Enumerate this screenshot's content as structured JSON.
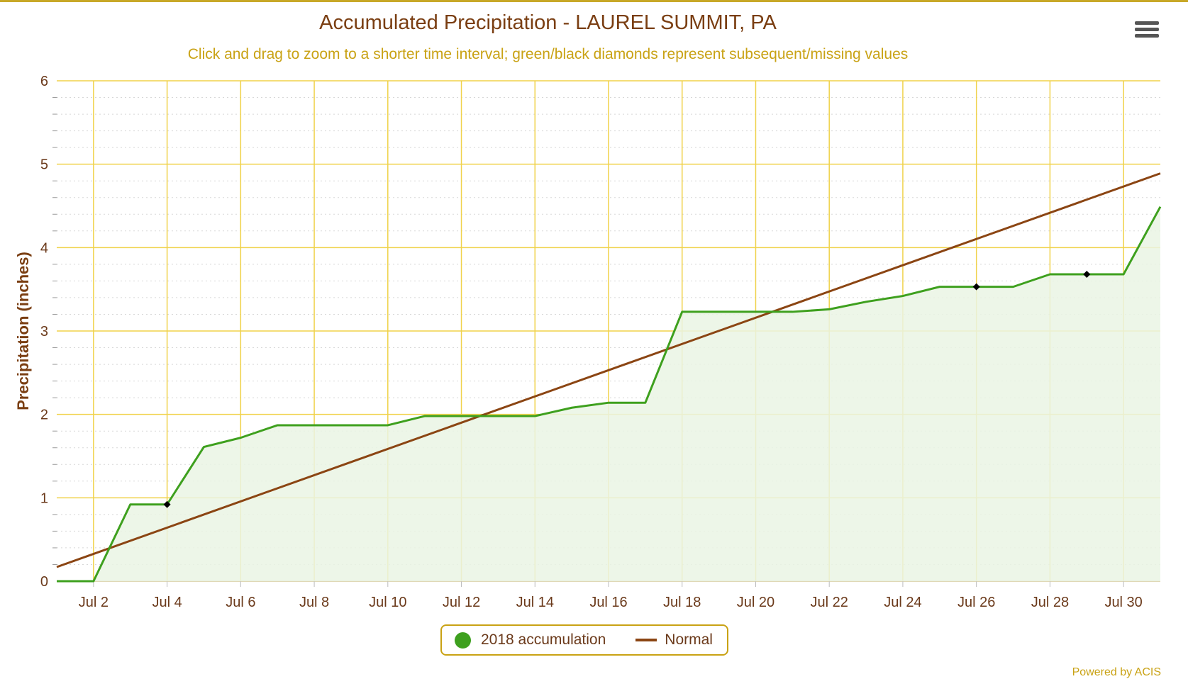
{
  "colors": {
    "accent": "#c9a214",
    "title": "#7a3e12",
    "accumulation": "#3ea01e",
    "normal": "#8b4513",
    "grid": "#f0d24a",
    "fill": "#eaf5e4"
  },
  "menu": {
    "icon": "hamburger-menu-icon"
  },
  "chart_data": {
    "type": "line",
    "title": "Accumulated Precipitation - LAUREL SUMMIT, PA",
    "subtitle": "Click and drag to zoom to a shorter time interval; green/black diamonds represent subsequent/missing values",
    "xlabel": "",
    "ylabel": "Precipitation (inches)",
    "ylim": [
      0,
      6
    ],
    "yticks": [
      "0",
      "1",
      "2",
      "3",
      "4",
      "5",
      "6"
    ],
    "xlim": [
      1,
      31
    ],
    "xticks": [
      {
        "day": 2,
        "label": "Jul 2"
      },
      {
        "day": 4,
        "label": "Jul 4"
      },
      {
        "day": 6,
        "label": "Jul 6"
      },
      {
        "day": 8,
        "label": "Jul 8"
      },
      {
        "day": 10,
        "label": "Jul 10"
      },
      {
        "day": 12,
        "label": "Jul 12"
      },
      {
        "day": 14,
        "label": "Jul 14"
      },
      {
        "day": 16,
        "label": "Jul 16"
      },
      {
        "day": 18,
        "label": "Jul 18"
      },
      {
        "day": 20,
        "label": "Jul 20"
      },
      {
        "day": 22,
        "label": "Jul 22"
      },
      {
        "day": 24,
        "label": "Jul 24"
      },
      {
        "day": 26,
        "label": "Jul 26"
      },
      {
        "day": 28,
        "label": "Jul 28"
      },
      {
        "day": 30,
        "label": "Jul 30"
      }
    ],
    "grid": true,
    "legend_position": "bottom-center",
    "series": [
      {
        "name": "2018 accumulation",
        "style": "area",
        "x": [
          1,
          2,
          3,
          4,
          5,
          6,
          7,
          8,
          9,
          10,
          11,
          12,
          13,
          14,
          15,
          16,
          17,
          18,
          19,
          20,
          21,
          22,
          23,
          24,
          25,
          26,
          27,
          28,
          29,
          30,
          31
        ],
        "y": [
          0,
          0,
          0.92,
          0.92,
          1.61,
          1.72,
          1.87,
          1.87,
          1.87,
          1.87,
          1.98,
          1.98,
          1.98,
          1.98,
          2.08,
          2.14,
          2.14,
          3.23,
          3.23,
          3.23,
          3.23,
          3.26,
          3.35,
          3.42,
          3.53,
          3.53,
          3.53,
          3.68,
          3.68,
          3.68,
          4.49
        ],
        "missing_markers": [
          {
            "day": 4,
            "value": 0.92
          },
          {
            "day": 26,
            "value": 3.53
          },
          {
            "day": 29,
            "value": 3.68
          }
        ]
      },
      {
        "name": "Normal",
        "style": "line",
        "x": [
          1,
          31
        ],
        "y": [
          0.17,
          4.89
        ]
      }
    ]
  },
  "legend": {
    "accumulation_label": "2018 accumulation",
    "normal_label": "Normal"
  },
  "credit": "Powered by ACIS"
}
